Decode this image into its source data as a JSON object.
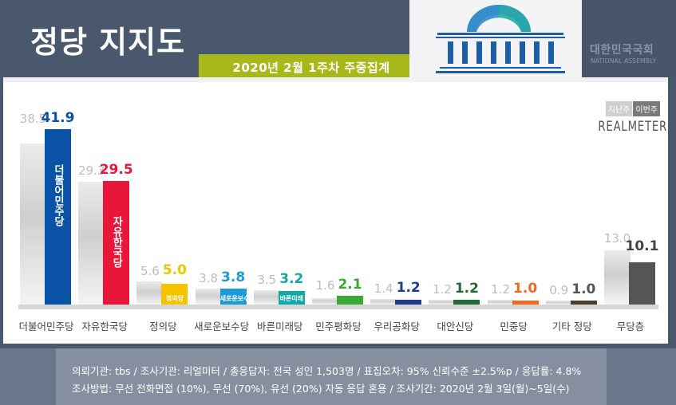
{
  "header": {
    "title": "정당 지지도",
    "subtitle": "2020년 2월 1주차 주중집계",
    "assembly_ko": "대한민국국회",
    "assembly_en": "NATIONAL ASSEMBLY",
    "logo_icon": "national-assembly-icon"
  },
  "legend": {
    "prev_label": "지난주",
    "curr_label": "이번주",
    "brand": "REALMETER"
  },
  "chart_data": {
    "type": "bar",
    "title": "정당 지지도",
    "subtitle": "2020년 2월 1주차 주중집계",
    "xlabel": "",
    "ylabel": "",
    "ylim": [
      0,
      45
    ],
    "grid": false,
    "legend_position": "top-right",
    "categories": [
      "더불어민주당",
      "자유한국당",
      "정의당",
      "새로운보수당",
      "바른미래당",
      "민주평화당",
      "우리공화당",
      "대안신당",
      "민중당",
      "기타 정당",
      "무당층"
    ],
    "series": [
      {
        "name": "지난주",
        "values": [
          38.5,
          29.3,
          5.6,
          3.8,
          3.5,
          1.6,
          1.4,
          1.2,
          1.2,
          0.9,
          13.0
        ]
      },
      {
        "name": "이번주",
        "values": [
          41.9,
          29.5,
          5.0,
          3.8,
          3.2,
          2.1,
          1.2,
          1.2,
          1.0,
          1.0,
          10.1
        ]
      }
    ]
  },
  "bars": [
    {
      "category": "더불어민주당",
      "prev": "38.5",
      "curr": "41.9",
      "color": "#0a52a6",
      "logo": "더불어민주당"
    },
    {
      "category": "자유한국당",
      "prev": "29.3",
      "curr": "29.5",
      "color": "#e8173a",
      "logo": "자유한국당"
    },
    {
      "category": "정의당",
      "prev": "5.6",
      "curr": "5.0",
      "color": "#f5c400",
      "logo": "정의당"
    },
    {
      "category": "새로운보수당",
      "prev": "3.8",
      "curr": "3.8",
      "color": "#1d9ad8",
      "logo": "새로운보수당"
    },
    {
      "category": "바른미래당",
      "prev": "3.5",
      "curr": "3.2",
      "color": "#12a8a8",
      "logo": "바른미래"
    },
    {
      "category": "민주평화당",
      "prev": "1.6",
      "curr": "2.1",
      "color": "#3aaa35",
      "logo": ""
    },
    {
      "category": "우리공화당",
      "prev": "1.4",
      "curr": "1.2",
      "color": "#1e3c8c",
      "logo": ""
    },
    {
      "category": "대안신당",
      "prev": "1.2",
      "curr": "1.2",
      "color": "#23683a",
      "logo": ""
    },
    {
      "category": "민중당",
      "prev": "1.2",
      "curr": "1.0",
      "color": "#ee6a1e",
      "logo": ""
    },
    {
      "category": "기타 정당",
      "prev": "0.9",
      "curr": "1.0",
      "color": "#4a3f28",
      "logo": ""
    },
    {
      "category": "무당층",
      "prev": "13.0",
      "curr": "10.1",
      "color": "#555555",
      "logo": ""
    }
  ],
  "footer": {
    "line1": "의뢰기관:  tbs  /  조사기관:  리얼미터   /  총응답자:  전국 성인 1,503명  /  표집오차:  95%  신뢰수준  ±2.5%p  /  응답률:  4.8%",
    "line2": "조사방법:  무선 전화면접 (10%),  무선 (70%),  유선 (20%)  자동  응답  혼용  /  조사기간:  2020년  2월  3일(월)~5일(수)"
  }
}
